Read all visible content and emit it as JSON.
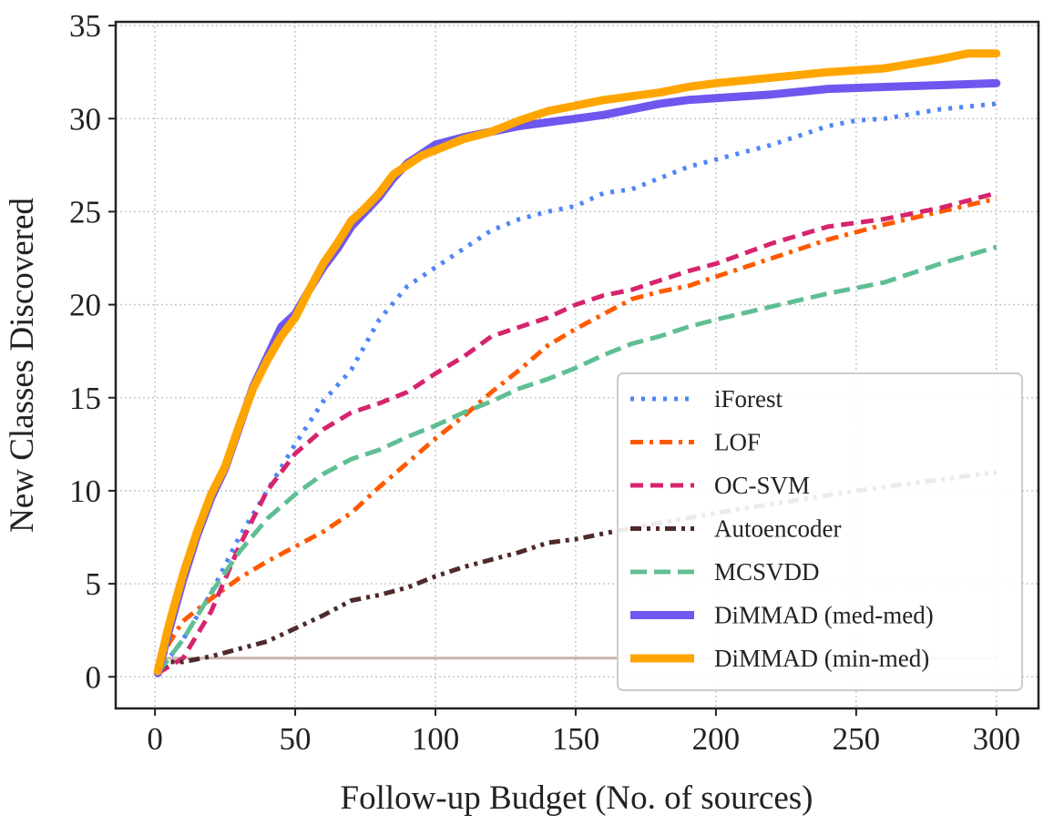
{
  "chart_data": {
    "type": "line",
    "title": "",
    "xlabel": "Follow-up Budget (No. of sources)",
    "ylabel": "New Classes Discovered",
    "xlim": [
      -14,
      315
    ],
    "ylim": [
      -1.7,
      35.2
    ],
    "xticks": [
      0,
      50,
      100,
      150,
      200,
      250,
      300
    ],
    "yticks": [
      0,
      5,
      10,
      15,
      20,
      25,
      30,
      35
    ],
    "grid": true,
    "legend_position": "bottom-right",
    "series": [
      {
        "name": "",
        "color": "#c9b3ad",
        "style": "solid",
        "x": [
          3,
          300
        ],
        "y": [
          1,
          1
        ]
      },
      {
        "name": "iForest",
        "color": "#4f86f7",
        "style": "dotted",
        "x": [
          1,
          10,
          20,
          30,
          40,
          50,
          60,
          70,
          80,
          90,
          100,
          110,
          120,
          130,
          140,
          150,
          160,
          170,
          180,
          190,
          200,
          220,
          240,
          250,
          260,
          280,
          300
        ],
        "y": [
          0.2,
          2,
          4.5,
          7.5,
          10,
          12.5,
          14.8,
          16.5,
          19.2,
          21,
          22,
          23,
          24,
          24.6,
          25,
          25.3,
          26,
          26.2,
          26.8,
          27.4,
          27.8,
          28.6,
          29.6,
          29.9,
          30,
          30.5,
          30.8
        ]
      },
      {
        "name": "LOF",
        "color": "#ff5a00",
        "style": "dashdot",
        "x": [
          1,
          5,
          10,
          20,
          30,
          40,
          50,
          60,
          70,
          80,
          90,
          100,
          110,
          120,
          130,
          140,
          150,
          160,
          170,
          180,
          190,
          200,
          220,
          240,
          260,
          280,
          300
        ],
        "y": [
          0.2,
          1.8,
          3,
          4.2,
          5.3,
          6.2,
          7,
          7.8,
          8.8,
          10.2,
          11.5,
          12.8,
          14,
          15.3,
          16.5,
          17.8,
          18.7,
          19.5,
          20.3,
          20.7,
          21,
          21.5,
          22.5,
          23.5,
          24.3,
          25,
          25.7
        ]
      },
      {
        "name": "OC-SVM",
        "color": "#d6246e",
        "style": "dashed",
        "x": [
          1,
          10,
          20,
          30,
          40,
          50,
          60,
          70,
          80,
          90,
          100,
          110,
          120,
          130,
          140,
          150,
          160,
          170,
          180,
          190,
          200,
          220,
          240,
          260,
          280,
          300
        ],
        "y": [
          0.2,
          1,
          3.5,
          7,
          10,
          12,
          13.3,
          14.2,
          14.7,
          15.3,
          16.3,
          17.2,
          18.3,
          18.8,
          19.3,
          20,
          20.5,
          20.8,
          21.3,
          21.8,
          22.2,
          23.3,
          24.2,
          24.6,
          25.2,
          26
        ]
      },
      {
        "name": "Autoencoder",
        "color": "#4e2a2a",
        "style": "dashdotdot",
        "x": [
          1,
          5,
          10,
          20,
          30,
          40,
          50,
          60,
          70,
          80,
          90,
          100,
          110,
          120,
          130,
          140,
          150,
          160,
          170,
          200,
          250,
          300
        ],
        "y": [
          0.3,
          0.8,
          0.8,
          1.1,
          1.5,
          1.9,
          2.6,
          3.3,
          4.1,
          4.4,
          4.8,
          5.4,
          5.9,
          6.3,
          6.7,
          7.2,
          7.4,
          7.7,
          8.0,
          8.8,
          10,
          11
        ]
      },
      {
        "name": "MCSVDD",
        "color": "#5fbf93",
        "style": "longdash",
        "x": [
          1,
          10,
          20,
          30,
          40,
          50,
          60,
          70,
          80,
          90,
          100,
          110,
          120,
          130,
          140,
          150,
          160,
          170,
          180,
          190,
          200,
          220,
          240,
          260,
          280,
          300
        ],
        "y": [
          0.2,
          2,
          4.5,
          6.7,
          8.5,
          9.8,
          10.9,
          11.7,
          12.2,
          12.9,
          13.5,
          14.2,
          14.8,
          15.5,
          16,
          16.6,
          17.3,
          17.9,
          18.3,
          18.8,
          19.2,
          19.9,
          20.6,
          21.2,
          22.2,
          23.1
        ]
      },
      {
        "name": "DiMMAD (med-med)",
        "color": "#6e57ee",
        "style": "solid-thick",
        "x": [
          1,
          5,
          10,
          15,
          20,
          25,
          30,
          35,
          40,
          45,
          50,
          55,
          60,
          65,
          70,
          75,
          80,
          85,
          90,
          95,
          100,
          110,
          120,
          130,
          140,
          150,
          160,
          170,
          180,
          190,
          200,
          220,
          240,
          260,
          280,
          300
        ],
        "y": [
          0.2,
          2.5,
          5.2,
          7.6,
          9.6,
          11.2,
          13.4,
          15.6,
          17.2,
          18.8,
          19.5,
          20.8,
          22,
          23,
          24.2,
          25,
          25.8,
          26.8,
          27.6,
          28.1,
          28.6,
          29,
          29.3,
          29.6,
          29.8,
          30,
          30.2,
          30.5,
          30.8,
          31,
          31.1,
          31.3,
          31.6,
          31.7,
          31.8,
          31.9
        ]
      },
      {
        "name": "DiMMAD (min-med)",
        "color": "#ffa500",
        "style": "solid-thick",
        "x": [
          1,
          5,
          10,
          15,
          20,
          25,
          30,
          35,
          40,
          45,
          50,
          55,
          60,
          65,
          70,
          75,
          80,
          85,
          90,
          95,
          100,
          110,
          120,
          130,
          140,
          150,
          160,
          170,
          180,
          190,
          200,
          220,
          240,
          260,
          280,
          290,
          300
        ],
        "y": [
          0.3,
          2.8,
          5.5,
          7.8,
          9.8,
          11.3,
          13.5,
          15.5,
          17,
          18.3,
          19.3,
          20.8,
          22.2,
          23.3,
          24.5,
          25.2,
          26,
          27,
          27.5,
          28,
          28.3,
          28.9,
          29.3,
          29.9,
          30.4,
          30.7,
          31,
          31.2,
          31.4,
          31.7,
          31.9,
          32.2,
          32.5,
          32.7,
          33.2,
          33.5,
          33.5
        ]
      }
    ]
  }
}
